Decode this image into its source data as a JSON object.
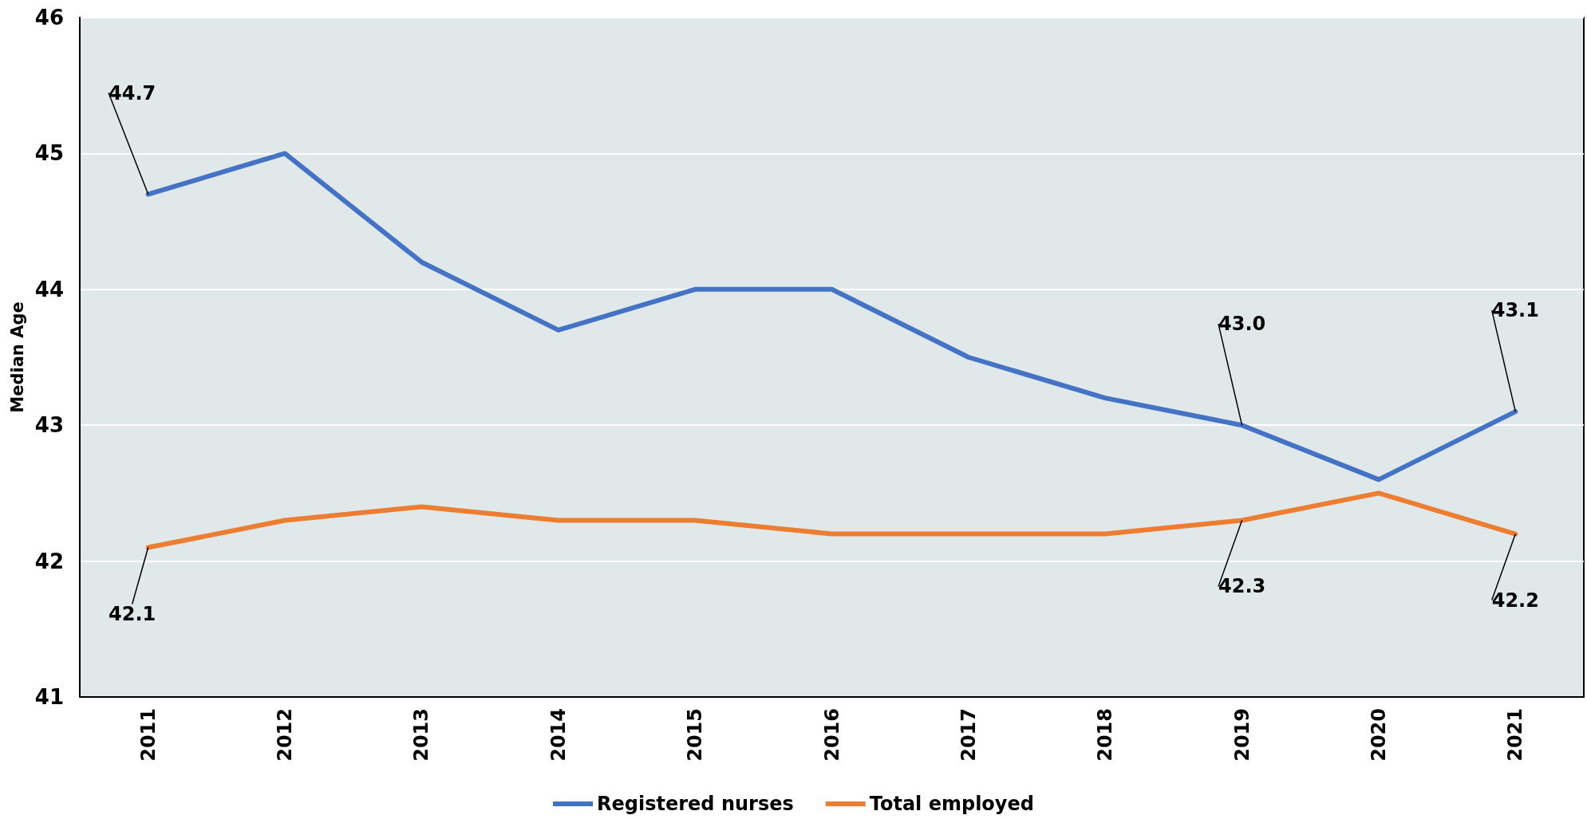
{
  "chart_data": {
    "type": "line",
    "ylabel": "Median Age",
    "categories": [
      "2011",
      "2012",
      "2013",
      "2014",
      "2015",
      "2016",
      "2017",
      "2018",
      "2019",
      "2020",
      "2021"
    ],
    "series": [
      {
        "name": "Registered nurses",
        "color": "#4472c4",
        "values": [
          44.7,
          45.0,
          44.2,
          43.7,
          44.0,
          44.0,
          43.5,
          43.2,
          43.0,
          42.6,
          43.1
        ],
        "value_labels": [
          "44.7",
          null,
          null,
          null,
          null,
          null,
          null,
          null,
          "43.0",
          null,
          "43.1"
        ]
      },
      {
        "name": "Total employed",
        "color": "#ed7d31",
        "values": [
          42.1,
          42.3,
          42.4,
          42.3,
          42.3,
          42.2,
          42.2,
          42.2,
          42.3,
          42.5,
          42.2
        ],
        "value_labels": [
          "42.1",
          null,
          null,
          null,
          null,
          null,
          null,
          null,
          "42.3",
          null,
          "42.2"
        ]
      }
    ],
    "ylim": [
      41,
      46
    ],
    "yticks": [
      41,
      42,
      43,
      44,
      45,
      46
    ],
    "grid": "y",
    "legend": "bottom",
    "marker": "none",
    "line_style": "solid"
  }
}
